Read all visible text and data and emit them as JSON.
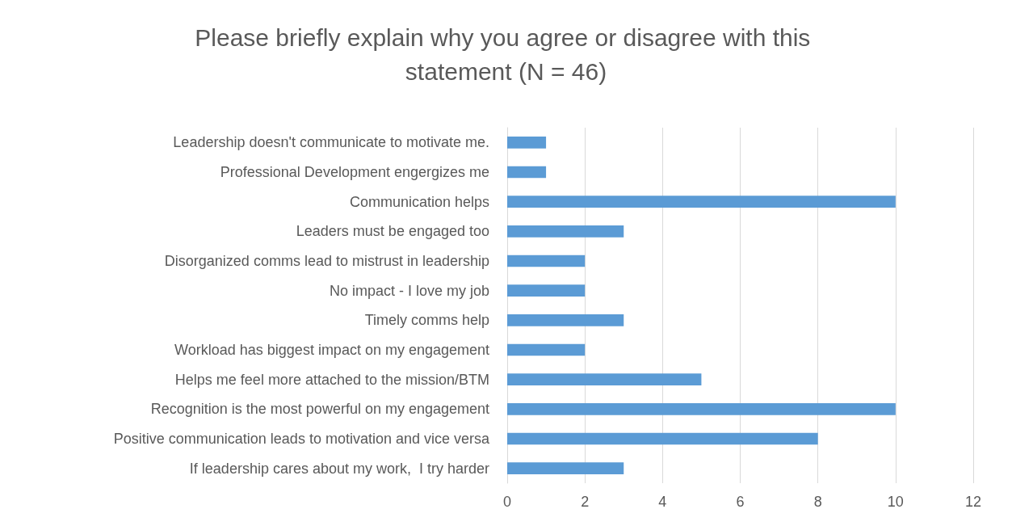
{
  "chart_data": {
    "type": "bar",
    "orientation": "horizontal",
    "title": "Please briefly explain why you agree or disagree with this statement (N = 46)",
    "categories": [
      "Leadership doesn't communicate to motivate me.",
      "Professional Development engergizes me",
      "Communication helps",
      "Leaders must be engaged too",
      "Disorganized comms lead to mistrust in leadership",
      "No impact - I love my job",
      "Timely comms help",
      "Workload has biggest impact on my engagement",
      "Helps me feel more attached to the mission/BTM",
      "Recognition is the most powerful on my engagement",
      "Positive communication leads to motivation and vice versa",
      "If leadership cares about my work,  I try harder"
    ],
    "values": [
      1,
      1,
      10,
      3,
      2,
      2,
      3,
      2,
      5,
      10,
      8,
      3
    ],
    "color": "#5b9bd5",
    "xlim": [
      0,
      12
    ],
    "xticks": [
      0,
      2,
      4,
      6,
      8,
      10,
      12
    ],
    "grid": "x"
  }
}
